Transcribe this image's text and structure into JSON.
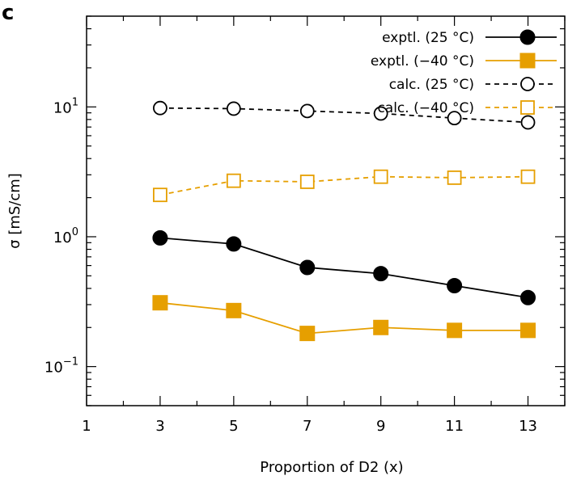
{
  "panel_label": "c",
  "chart_data": {
    "type": "line",
    "xlabel": "Proportion of D2 (x)",
    "ylabel": "σ [mS/cm]",
    "x_ticks": [
      1,
      3,
      5,
      7,
      9,
      11,
      13
    ],
    "xlim": [
      1,
      14
    ],
    "ylim": [
      0.05,
      50
    ],
    "y_scale": "log",
    "y_ticks": [
      {
        "value": 0.1,
        "base": "10",
        "exp": "−1"
      },
      {
        "value": 1,
        "base": "10",
        "exp": "0"
      },
      {
        "value": 10,
        "base": "10",
        "exp": "1"
      }
    ],
    "grid": false,
    "legend_position": "top-right",
    "x": [
      3,
      5,
      7,
      9,
      11,
      13
    ],
    "series": [
      {
        "name": "exptl. (25 °C)",
        "values": [
          0.98,
          0.88,
          0.58,
          0.52,
          0.42,
          0.34
        ],
        "color": "#000000",
        "marker": "circle",
        "filled": true,
        "dashed": false
      },
      {
        "name": "exptl. (−40 °C)",
        "values": [
          0.31,
          0.27,
          0.18,
          0.2,
          0.19,
          0.19
        ],
        "color": "#E69F00",
        "marker": "square",
        "filled": true,
        "dashed": false
      },
      {
        "name": "calc. (25 °C)",
        "values": [
          9.8,
          9.7,
          9.3,
          8.9,
          8.2,
          7.6
        ],
        "color": "#000000",
        "marker": "circle",
        "filled": false,
        "dashed": true
      },
      {
        "name": "calc. (−40 °C)",
        "values": [
          2.1,
          2.7,
          2.65,
          2.9,
          2.85,
          2.9
        ],
        "color": "#E69F00",
        "marker": "square",
        "filled": false,
        "dashed": true
      }
    ]
  }
}
